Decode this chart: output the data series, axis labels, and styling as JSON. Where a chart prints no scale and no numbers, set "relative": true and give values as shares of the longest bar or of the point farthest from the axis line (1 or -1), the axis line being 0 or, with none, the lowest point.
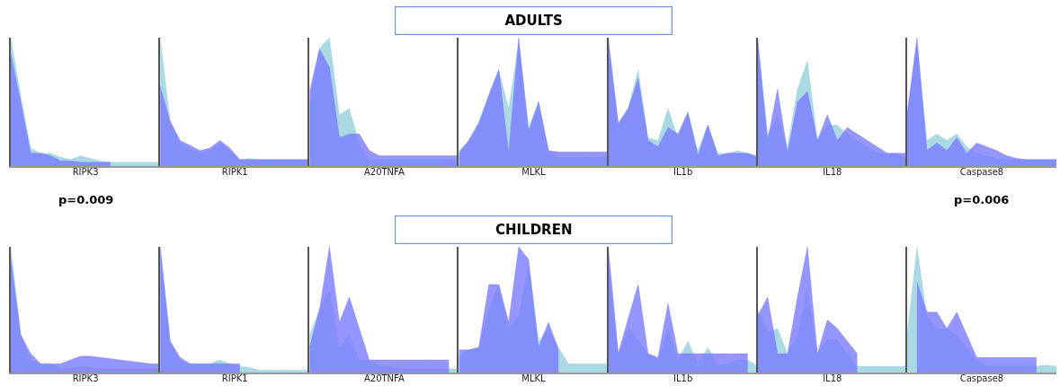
{
  "chart_data": [
    {
      "type": "area",
      "relative": true,
      "xlabel": "RIPK3",
      "annotations": [
        "p=0.009"
      ],
      "categories": [
        null,
        null,
        null,
        null,
        null,
        null,
        null,
        null,
        null,
        null,
        null,
        null,
        null,
        null,
        null,
        null
      ],
      "series": [
        {
          "color": "#a9d9e3",
          "values": [
            1,
            0.55,
            0.14,
            0.1,
            0.1,
            0.07,
            0.05,
            0.08,
            0.06,
            0.04,
            0.03,
            0.03,
            0.03,
            0.03,
            0.03,
            0.03
          ]
        },
        {
          "color": "#7b7bff",
          "values": [
            0.87,
            0.5,
            0.1,
            0.1,
            0.08,
            0.04,
            0.04,
            0.03,
            0.03,
            0.03,
            0.03,
            null,
            null,
            null,
            null,
            null
          ]
        }
      ]
    },
    {
      "type": "area",
      "relative": true,
      "xlabel": "RIPK1",
      "categories": [
        null,
        null,
        null,
        null,
        null,
        null,
        null,
        null,
        null,
        null,
        null,
        null,
        null,
        null,
        null,
        null
      ],
      "series": [
        {
          "color": "#a9d9e3",
          "values": [
            1,
            0.35,
            0.18,
            0.13,
            0.1,
            0.12,
            0.18,
            0.12,
            0.05,
            0.06,
            0.05,
            0.05,
            0.05,
            0.05,
            0.05,
            0.05
          ]
        },
        {
          "color": "#7b7bff",
          "values": [
            0.62,
            0.35,
            0.2,
            0.16,
            0.12,
            0.14,
            0.2,
            0.14,
            0.05,
            0.05,
            0.05,
            0.05,
            0.05,
            0.05,
            0.05,
            0.05
          ]
        }
      ]
    },
    {
      "type": "area",
      "relative": true,
      "xlabel": "A20TNFA",
      "categories": [
        null,
        null,
        null,
        null,
        null,
        null,
        null,
        null,
        null,
        null,
        null,
        null,
        null,
        null,
        null,
        null
      ],
      "series": [
        {
          "color": "#a9d9e3",
          "values": [
            0.5,
            0.92,
            1,
            0.4,
            0.45,
            0.17,
            0.05,
            0.05,
            0.05,
            0.05,
            0.05,
            0.05,
            0.05,
            0.05,
            0.05,
            0.05
          ]
        },
        {
          "color": "#7b7bff",
          "values": [
            0.58,
            0.91,
            0.77,
            0.22,
            0.25,
            0.25,
            0.12,
            0.08,
            0.08,
            0.08,
            0.08,
            0.08,
            0.08,
            0.08,
            0.08,
            0.08
          ]
        }
      ]
    },
    {
      "type": "area",
      "relative": true,
      "title": "ADULTS",
      "xlabel": "MLKL",
      "categories": [
        null,
        null,
        null,
        null,
        null,
        null,
        null,
        null,
        null,
        null,
        null,
        null,
        null,
        null,
        null,
        null
      ],
      "series": [
        {
          "color": "#a9d9e3",
          "values": [
            0.12,
            0.2,
            0.35,
            0.55,
            0.75,
            0.45,
            0.96,
            0.3,
            0.5,
            0.12,
            0.07,
            0.07,
            0.07,
            0.07,
            0.07,
            0.07
          ]
        },
        {
          "color": "#7b7bff",
          "values": [
            0.1,
            0.2,
            0.33,
            0.55,
            0.75,
            0.1,
            1,
            0.27,
            0.5,
            0.12,
            0.11,
            0.11,
            0.11,
            0.11,
            0.11,
            0.11
          ]
        }
      ]
    },
    {
      "type": "area",
      "relative": true,
      "xlabel": "IL1b",
      "categories": [
        null,
        null,
        null,
        null,
        null,
        null,
        null,
        null,
        null,
        null,
        null,
        null,
        null,
        null,
        null,
        null
      ],
      "series": [
        {
          "color": "#a9d9e3",
          "values": [
            0.96,
            0.33,
            0.45,
            0.75,
            0.22,
            0.2,
            0.45,
            0.22,
            0.42,
            0.12,
            0.32,
            0.1,
            0.1,
            0.12,
            0.1,
            0.08
          ]
        },
        {
          "color": "#7b7bff",
          "values": [
            1,
            0.33,
            0.45,
            0.68,
            0.2,
            0.15,
            0.3,
            0.25,
            0.42,
            0.08,
            0.32,
            0.08,
            0.1,
            0.1,
            0.1,
            0.07
          ]
        }
      ]
    },
    {
      "type": "area",
      "relative": true,
      "xlabel": "IL18",
      "categories": [
        null,
        null,
        null,
        null,
        null,
        null,
        null,
        null,
        null,
        null,
        null,
        null,
        null,
        null,
        null,
        null
      ],
      "series": [
        {
          "color": "#a9d9e3",
          "values": [
            0.96,
            0.25,
            0.38,
            0.15,
            0.6,
            0.82,
            0.2,
            0.32,
            0.32,
            0.25,
            0.2,
            0.15,
            0.1,
            0.1,
            0.1,
            0.05
          ]
        },
        {
          "color": "#7b7bff",
          "values": [
            1,
            0.2,
            0.6,
            0.1,
            0.5,
            0.58,
            0.2,
            0.4,
            0.2,
            0.3,
            0.25,
            0.2,
            0.15,
            0.1,
            0.1,
            0.1
          ]
        }
      ]
    },
    {
      "type": "area",
      "relative": true,
      "xlabel": "Caspase8",
      "annotations": [
        "p=0.006"
      ],
      "categories": [
        null,
        null,
        null,
        null,
        null,
        null,
        null,
        null,
        null,
        null,
        null,
        null,
        null,
        null,
        null,
        null
      ],
      "series": [
        {
          "color": "#a9d9e3",
          "values": [
            0.4,
            0.95,
            0.2,
            0.25,
            0.2,
            0.25,
            0.15,
            0.1,
            0.08,
            0.06,
            0.05,
            0.05,
            0.05,
            0.05,
            0.05,
            0.05
          ]
        },
        {
          "color": "#7b7bff",
          "values": [
            0.4,
            1,
            0.12,
            0.18,
            0.12,
            0.22,
            0.1,
            0.18,
            0.15,
            0.12,
            0.08,
            0.06,
            0.05,
            0.05,
            0.05,
            0.05
          ]
        }
      ]
    },
    {
      "type": "area",
      "relative": true,
      "xlabel": "RIPK3",
      "categories": [
        null,
        null,
        null,
        null,
        null,
        null,
        null,
        null,
        null,
        null,
        null,
        null,
        null,
        null,
        null,
        null
      ],
      "series": [
        {
          "color": "#a9d9e3",
          "values": [
            1,
            0.3,
            0.1,
            0.07,
            0.07,
            0.03,
            0.03,
            0.05,
            0.04,
            0.03,
            0.03,
            0.03,
            0.03,
            0.03,
            0.03,
            0.03
          ]
        },
        {
          "color": "#7b7bff",
          "values": [
            0.9,
            0.3,
            0.15,
            0.07,
            0.07,
            0.07,
            0.1,
            0.13,
            0.13,
            0.12,
            0.11,
            0.1,
            0.09,
            0.08,
            0.07,
            0.07
          ]
        }
      ]
    },
    {
      "type": "area",
      "relative": true,
      "xlabel": "RIPK1",
      "categories": [
        null,
        null,
        null,
        null,
        null,
        null,
        null,
        null,
        null,
        null,
        null,
        null,
        null,
        null,
        null,
        null
      ],
      "series": [
        {
          "color": "#a9d9e3",
          "values": [
            1,
            0.25,
            0.1,
            0.07,
            0.07,
            0.07,
            0.1,
            0.07,
            0.05,
            0.04,
            0.02,
            0.02,
            0.02,
            0.02,
            0.02,
            0.02
          ]
        },
        {
          "color": "#7b7bff",
          "values": [
            1,
            0.25,
            0.12,
            0.07,
            0.07,
            0.07,
            0.07,
            0.07,
            0.07,
            null,
            null,
            null,
            null,
            null,
            null,
            null
          ]
        }
      ]
    },
    {
      "type": "area",
      "relative": true,
      "xlabel": "A20TNFA",
      "categories": [
        null,
        null,
        null,
        null,
        null,
        null,
        null,
        null,
        null,
        null,
        null,
        null,
        null,
        null,
        null,
        null
      ],
      "series": [
        {
          "color": "#a9d9e3",
          "values": [
            0.3,
            0.5,
            0.65,
            0.2,
            0.3,
            0.1,
            0.1,
            0.05,
            0.05,
            0.03,
            0.03,
            0.03,
            0.03,
            0.03,
            0.03,
            0.03
          ]
        },
        {
          "color": "#7b7bff",
          "values": [
            0.2,
            0.5,
            1,
            0.4,
            0.6,
            0.35,
            0.1,
            0.1,
            0.1,
            0.1,
            0.1,
            0.1,
            0.1,
            0.1,
            0.1,
            null
          ]
        }
      ]
    },
    {
      "type": "area",
      "relative": true,
      "title": "CHILDREN",
      "xlabel": "MLKL",
      "categories": [
        null,
        null,
        null,
        null,
        null,
        null,
        null,
        null,
        null,
        null,
        null,
        null,
        null,
        null,
        null,
        null
      ],
      "series": [
        {
          "color": "#a9d9e3",
          "values": [
            0.13,
            0.18,
            0.2,
            0.5,
            0.7,
            0.35,
            0.45,
            0.85,
            0.25,
            0.35,
            0.2,
            0.07,
            0.07,
            0.07,
            0.07,
            0.07
          ]
        },
        {
          "color": "#7b7bff",
          "values": [
            0.18,
            0.18,
            0.2,
            0.7,
            0.7,
            0.4,
            1,
            0.9,
            0.2,
            0.4,
            0.18,
            null,
            null,
            null,
            null,
            null
          ]
        }
      ]
    },
    {
      "type": "area",
      "relative": true,
      "xlabel": "IL1b",
      "categories": [
        null,
        null,
        null,
        null,
        null,
        null,
        null,
        null,
        null,
        null,
        null,
        null,
        null,
        null,
        null,
        null
      ],
      "series": [
        {
          "color": "#a9d9e3",
          "values": [
            0.9,
            0.15,
            0.35,
            0.26,
            0.15,
            0.1,
            0.35,
            0.1,
            0.25,
            0.07,
            0.2,
            0.06,
            0.07,
            0.1,
            0.1,
            0.05
          ]
        },
        {
          "color": "#7b7bff",
          "values": [
            1,
            0.15,
            0.43,
            0.7,
            0.15,
            0.12,
            0.55,
            0.15,
            0.15,
            0.15,
            0.15,
            0.15,
            0.15,
            0.15,
            0.15,
            null
          ]
        }
      ]
    },
    {
      "type": "area",
      "relative": true,
      "xlabel": "IL18",
      "categories": [
        null,
        null,
        null,
        null,
        null,
        null,
        null,
        null,
        null,
        null,
        null,
        null,
        null,
        null,
        null,
        null
      ],
      "series": [
        {
          "color": "#a9d9e3",
          "values": [
            0.5,
            0.32,
            0.35,
            0.15,
            0.3,
            0.65,
            0.15,
            0.26,
            0.26,
            0.15,
            0.05,
            0.05,
            0.05,
            0.05,
            0.05,
            0.05
          ]
        },
        {
          "color": "#7b7bff",
          "values": [
            0.45,
            0.6,
            0.15,
            0.15,
            0.6,
            1,
            0.15,
            0.42,
            0.35,
            0.25,
            0.15,
            null,
            null,
            null,
            null,
            null
          ]
        }
      ]
    },
    {
      "type": "area",
      "relative": true,
      "xlabel": "Caspase8",
      "categories": [
        null,
        null,
        null,
        null,
        null,
        null,
        null,
        null,
        null,
        null,
        null,
        null,
        null,
        null,
        null,
        null
      ],
      "series": [
        {
          "color": "#a9d9e3",
          "values": [
            0.3,
            1,
            0.45,
            0.35,
            0.35,
            0.3,
            0.2,
            0.1,
            0.05,
            0.05,
            0.05,
            0.05,
            0.05,
            0.05,
            0.06,
            0.05
          ]
        },
        {
          "color": "#7b7bff",
          "values": [
            null,
            0.72,
            0.48,
            0.48,
            0.35,
            0.48,
            0.3,
            0.12,
            0.12,
            0.12,
            0.12,
            0.12,
            0.12,
            0.12,
            null,
            null
          ]
        }
      ]
    }
  ]
}
